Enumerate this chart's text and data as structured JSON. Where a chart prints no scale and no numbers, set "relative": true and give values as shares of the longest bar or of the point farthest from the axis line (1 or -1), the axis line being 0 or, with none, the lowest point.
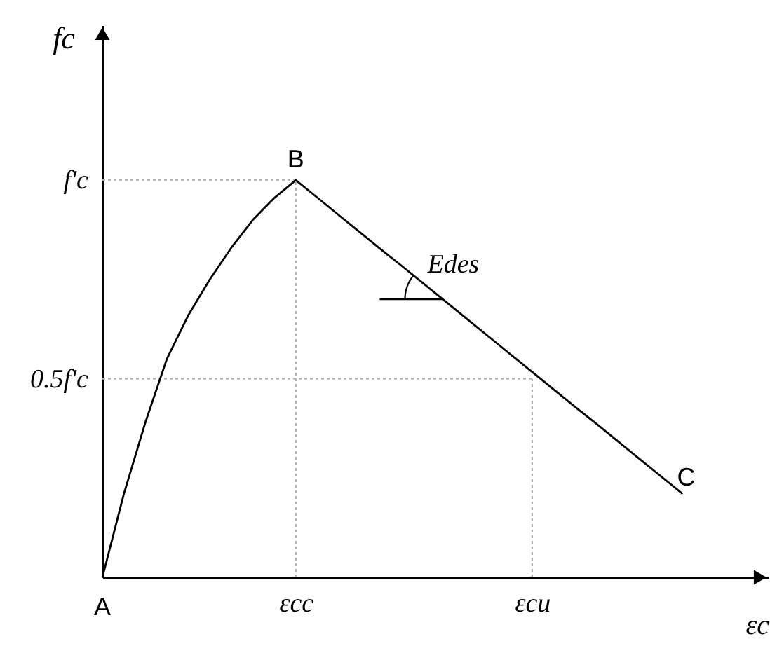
{
  "chart_data": {
    "type": "line",
    "relative": true,
    "xlabel": "εc",
    "ylabel": "fc",
    "categories": [
      null,
      null,
      null,
      null,
      null,
      null,
      null,
      null,
      null,
      "εcc",
      null,
      null,
      null,
      null,
      null,
      null,
      null,
      null,
      null,
      null,
      "εcu",
      null,
      null,
      null,
      null,
      null,
      null,
      null,
      null,
      null,
      null,
      null
    ],
    "series": [
      {
        "color": "#000000",
        "values": [
          0,
          0.21,
          0.39,
          0.55,
          0.66,
          0.75,
          0.83,
          0.9,
          0.955,
          1,
          0.956,
          0.912,
          0.868,
          0.824,
          0.781,
          0.737,
          0.693,
          0.649,
          0.605,
          0.561,
          0.517,
          0.473,
          0.429,
          0.386,
          0.342,
          0.298,
          0.254,
          0.21,
          null,
          null,
          null,
          null
        ]
      }
    ],
    "ref_lines": [
      {
        "axis": "y",
        "value": 1,
        "label": "f'c",
        "color": "#b4b4b4",
        "line_style": "dotted"
      },
      {
        "axis": "y",
        "value": 0.5,
        "label": "0.5f'c",
        "color": "#b4b4b4",
        "line_style": "dotted"
      },
      {
        "axis": "x",
        "value": "εcc",
        "color": "#b4b4b4",
        "line_style": "dotted"
      },
      {
        "axis": "x",
        "value": "εcu",
        "color": "#b4b4b4",
        "line_style": "dotted"
      }
    ],
    "annotations": [
      {
        "text": "A",
        "y": 0
      },
      {
        "text": "B",
        "x": "εcc",
        "y": 1
      },
      {
        "text": "C",
        "y": 0.21
      },
      {
        "text": "Edes",
        "y": 0.7
      }
    ]
  }
}
